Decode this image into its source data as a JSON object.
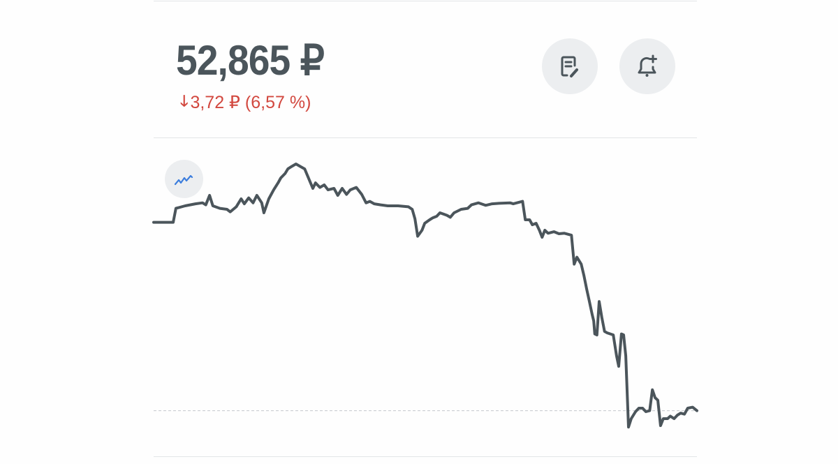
{
  "quote": {
    "price": "52,865 ₽",
    "change_arrow_icon": "arrow-down-icon",
    "change": "3,72 ₽ (6,57 %)",
    "direction": "down",
    "down_color": "#d2483f"
  },
  "actions": [
    {
      "icon": "note-edit-icon"
    },
    {
      "icon": "bell-plus-icon"
    }
  ],
  "chart_toggle": {
    "icon": "trend-line-icon",
    "color": "#3b7ddd"
  },
  "chart_data": {
    "type": "line",
    "title": "",
    "xlabel": "",
    "ylabel": "",
    "x_unit": "session progress %",
    "xlim": [
      0,
      100
    ],
    "ylim": [
      51.89,
      58.26
    ],
    "grid": false,
    "legend": "none",
    "line_color": "#4b555b",
    "reference_line": 52.82,
    "points": [
      [
        0,
        56.6
      ],
      [
        3.6,
        56.6
      ],
      [
        4.1,
        56.88
      ],
      [
        5.8,
        56.93
      ],
      [
        7.7,
        56.97
      ],
      [
        9.0,
        56.99
      ],
      [
        9.6,
        56.95
      ],
      [
        10.3,
        57.14
      ],
      [
        10.9,
        56.93
      ],
      [
        12.2,
        56.88
      ],
      [
        13.5,
        56.86
      ],
      [
        14.1,
        56.81
      ],
      [
        15.2,
        56.91
      ],
      [
        16.1,
        57.07
      ],
      [
        16.7,
        56.97
      ],
      [
        17.5,
        57.09
      ],
      [
        18.3,
        56.99
      ],
      [
        19.0,
        57.14
      ],
      [
        19.9,
        56.99
      ],
      [
        20.3,
        56.79
      ],
      [
        21.2,
        57.07
      ],
      [
        22.1,
        57.25
      ],
      [
        22.9,
        57.39
      ],
      [
        23.4,
        57.49
      ],
      [
        24.2,
        57.58
      ],
      [
        24.7,
        57.67
      ],
      [
        25.4,
        57.72
      ],
      [
        26.2,
        57.77
      ],
      [
        27.0,
        57.72
      ],
      [
        27.8,
        57.67
      ],
      [
        28.5,
        57.49
      ],
      [
        29.3,
        57.28
      ],
      [
        29.8,
        57.39
      ],
      [
        30.6,
        57.3
      ],
      [
        31.4,
        57.35
      ],
      [
        32.1,
        57.25
      ],
      [
        33.2,
        57.28
      ],
      [
        33.9,
        57.14
      ],
      [
        34.7,
        57.28
      ],
      [
        35.5,
        57.16
      ],
      [
        36.2,
        57.25
      ],
      [
        37.3,
        57.3
      ],
      [
        38.3,
        57.16
      ],
      [
        39.1,
        56.99
      ],
      [
        39.8,
        57.02
      ],
      [
        40.6,
        56.97
      ],
      [
        41.8,
        56.95
      ],
      [
        43.1,
        56.93
      ],
      [
        45.0,
        56.93
      ],
      [
        46.9,
        56.91
      ],
      [
        47.6,
        56.86
      ],
      [
        48.1,
        56.67
      ],
      [
        48.6,
        56.32
      ],
      [
        49.4,
        56.44
      ],
      [
        49.9,
        56.58
      ],
      [
        50.8,
        56.65
      ],
      [
        51.4,
        56.69
      ],
      [
        52.1,
        56.72
      ],
      [
        52.7,
        56.79
      ],
      [
        54.0,
        56.74
      ],
      [
        54.6,
        56.7
      ],
      [
        55.3,
        56.79
      ],
      [
        56.6,
        56.86
      ],
      [
        57.8,
        56.88
      ],
      [
        58.5,
        56.95
      ],
      [
        59.8,
        56.99
      ],
      [
        61.1,
        56.94
      ],
      [
        62.3,
        56.97
      ],
      [
        63.6,
        56.98
      ],
      [
        65.6,
        56.99
      ],
      [
        66.2,
        56.97
      ],
      [
        67.9,
        57.02
      ],
      [
        68.4,
        56.65
      ],
      [
        69.2,
        56.65
      ],
      [
        69.7,
        56.55
      ],
      [
        70.4,
        56.58
      ],
      [
        71.0,
        56.44
      ],
      [
        71.5,
        56.3
      ],
      [
        72.0,
        56.44
      ],
      [
        72.6,
        56.38
      ],
      [
        73.7,
        56.41
      ],
      [
        74.6,
        56.37
      ],
      [
        75.6,
        56.38
      ],
      [
        76.9,
        56.34
      ],
      [
        77.4,
        55.76
      ],
      [
        77.9,
        55.9
      ],
      [
        78.7,
        55.76
      ],
      [
        79.2,
        55.53
      ],
      [
        79.7,
        55.26
      ],
      [
        80.2,
        55.01
      ],
      [
        80.7,
        54.76
      ],
      [
        81.0,
        54.62
      ],
      [
        81.2,
        54.36
      ],
      [
        81.6,
        54.34
      ],
      [
        82.0,
        55.01
      ],
      [
        82.5,
        54.69
      ],
      [
        83.0,
        54.41
      ],
      [
        83.5,
        54.38
      ],
      [
        84.6,
        54.34
      ],
      [
        85.2,
        53.92
      ],
      [
        85.6,
        53.71
      ],
      [
        86.1,
        54.36
      ],
      [
        86.5,
        54.34
      ],
      [
        86.9,
        53.92
      ],
      [
        87.4,
        52.49
      ],
      [
        87.9,
        52.66
      ],
      [
        88.7,
        52.8
      ],
      [
        89.3,
        52.87
      ],
      [
        90.0,
        52.87
      ],
      [
        90.6,
        52.8
      ],
      [
        91.3,
        52.82
      ],
      [
        91.8,
        53.24
      ],
      [
        92.3,
        53.08
      ],
      [
        92.8,
        53.03
      ],
      [
        93.3,
        52.52
      ],
      [
        93.8,
        52.66
      ],
      [
        94.6,
        52.66
      ],
      [
        95.1,
        52.71
      ],
      [
        95.8,
        52.66
      ],
      [
        96.4,
        52.73
      ],
      [
        97.0,
        52.77
      ],
      [
        97.7,
        52.75
      ],
      [
        98.3,
        52.87
      ],
      [
        99.2,
        52.89
      ],
      [
        100,
        52.82
      ]
    ]
  }
}
